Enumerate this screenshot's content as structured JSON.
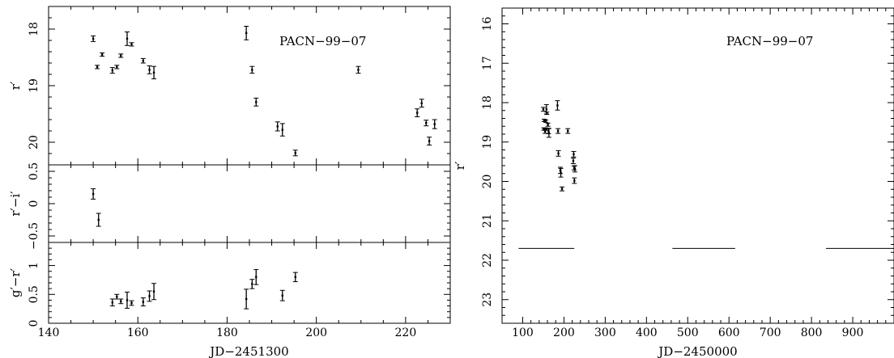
{
  "chart_data": [
    {
      "type": "scatter",
      "panel": "left-top",
      "annotation": "PACN−99−07",
      "ylabel": "r′",
      "xlim": [
        140,
        230
      ],
      "ylim": [
        20.4,
        17.6
      ],
      "y_axis_inverted": true,
      "yticks": [
        18,
        19,
        20
      ],
      "ytick_labels": [
        "18",
        "19",
        "20"
      ],
      "series": [
        {
          "points": [
            {
              "x": 150.0,
              "y": 18.17,
              "err": 0.05
            },
            {
              "x": 150.9,
              "y": 18.67,
              "err": 0.03
            },
            {
              "x": 152.0,
              "y": 18.45,
              "err": 0.03
            },
            {
              "x": 154.3,
              "y": 18.73,
              "err": 0.05
            },
            {
              "x": 155.3,
              "y": 18.67,
              "err": 0.03
            },
            {
              "x": 156.2,
              "y": 18.47,
              "err": 0.03
            },
            {
              "x": 157.6,
              "y": 18.17,
              "err": 0.12
            },
            {
              "x": 158.6,
              "y": 18.27,
              "err": 0.03
            },
            {
              "x": 161.2,
              "y": 18.56,
              "err": 0.04
            },
            {
              "x": 162.6,
              "y": 18.72,
              "err": 0.07
            },
            {
              "x": 163.6,
              "y": 18.77,
              "err": 0.11
            },
            {
              "x": 184.3,
              "y": 18.07,
              "err": 0.12
            },
            {
              "x": 185.6,
              "y": 18.72,
              "err": 0.06
            },
            {
              "x": 186.5,
              "y": 19.29,
              "err": 0.07
            },
            {
              "x": 191.3,
              "y": 19.72,
              "err": 0.08
            },
            {
              "x": 192.4,
              "y": 19.78,
              "err": 0.11
            },
            {
              "x": 195.3,
              "y": 20.19,
              "err": 0.05
            },
            {
              "x": 209.4,
              "y": 18.72,
              "err": 0.06
            },
            {
              "x": 222.6,
              "y": 19.48,
              "err": 0.07
            },
            {
              "x": 223.6,
              "y": 19.31,
              "err": 0.07
            },
            {
              "x": 224.6,
              "y": 19.66,
              "err": 0.05
            },
            {
              "x": 225.3,
              "y": 19.98,
              "err": 0.07
            },
            {
              "x": 226.5,
              "y": 19.68,
              "err": 0.08
            }
          ]
        }
      ]
    },
    {
      "type": "scatter",
      "panel": "left-middle",
      "ylabel": "r′−i′",
      "xlim": [
        140,
        230
      ],
      "ylim": [
        -0.6,
        0.6
      ],
      "yticks": [
        -0.5,
        0,
        0.5
      ],
      "ytick_labels": [
        "−0.5",
        "0",
        "0.5"
      ],
      "series": [
        {
          "points": [
            {
              "x": 150.0,
              "y": 0.15,
              "err": 0.08
            },
            {
              "x": 151.2,
              "y": -0.25,
              "err": 0.1
            }
          ]
        }
      ]
    },
    {
      "type": "scatter",
      "panel": "left-bottom",
      "ylabel": "g′−r′",
      "xlabel": "JD−2451300",
      "xlim": [
        140,
        230
      ],
      "ylim": [
        0,
        1.4
      ],
      "xticks": [
        140,
        160,
        180,
        200,
        220
      ],
      "xtick_labels": [
        "140",
        "160",
        "180",
        "200",
        "220"
      ],
      "yticks": [
        0,
        0.5,
        1
      ],
      "ytick_labels": [
        "0",
        "0.5",
        "1"
      ],
      "series": [
        {
          "points": [
            {
              "x": 154.3,
              "y": 0.36,
              "err": 0.06
            },
            {
              "x": 155.3,
              "y": 0.46,
              "err": 0.04
            },
            {
              "x": 156.2,
              "y": 0.38,
              "err": 0.04
            },
            {
              "x": 157.6,
              "y": 0.4,
              "err": 0.14
            },
            {
              "x": 158.6,
              "y": 0.35,
              "err": 0.04
            },
            {
              "x": 161.2,
              "y": 0.37,
              "err": 0.07
            },
            {
              "x": 162.6,
              "y": 0.47,
              "err": 0.09
            },
            {
              "x": 163.6,
              "y": 0.55,
              "err": 0.14
            },
            {
              "x": 184.3,
              "y": 0.42,
              "err": 0.17
            },
            {
              "x": 185.6,
              "y": 0.68,
              "err": 0.08
            },
            {
              "x": 186.5,
              "y": 0.8,
              "err": 0.13
            },
            {
              "x": 192.4,
              "y": 0.48,
              "err": 0.09
            },
            {
              "x": 195.3,
              "y": 0.8,
              "err": 0.08
            }
          ]
        }
      ]
    },
    {
      "type": "scatter",
      "panel": "right",
      "annotation": "PACN−99−07",
      "ylabel": "r′",
      "xlabel": "JD−2450000",
      "xlim": [
        50,
        1000
      ],
      "ylim": [
        23.6,
        15.6
      ],
      "y_axis_inverted": true,
      "xticks": [
        100,
        200,
        300,
        400,
        500,
        600,
        700,
        800,
        900
      ],
      "xtick_labels": [
        "100",
        "200",
        "300",
        "400",
        "500",
        "600",
        "700",
        "800",
        "900"
      ],
      "yticks": [
        16,
        17,
        18,
        19,
        20,
        21,
        22,
        23
      ],
      "ytick_labels": [
        "16",
        "17",
        "18",
        "19",
        "20",
        "21",
        "22",
        "23"
      ],
      "series": [
        {
          "points": [
            {
              "x": 150.0,
              "y": 18.17,
              "err": 0.05
            },
            {
              "x": 150.9,
              "y": 18.67,
              "err": 0.03
            },
            {
              "x": 152.0,
              "y": 18.45,
              "err": 0.03
            },
            {
              "x": 154.3,
              "y": 18.73,
              "err": 0.05
            },
            {
              "x": 155.3,
              "y": 18.67,
              "err": 0.03
            },
            {
              "x": 156.2,
              "y": 18.47,
              "err": 0.03
            },
            {
              "x": 157.6,
              "y": 18.17,
              "err": 0.12
            },
            {
              "x": 158.6,
              "y": 18.27,
              "err": 0.03
            },
            {
              "x": 161.2,
              "y": 18.56,
              "err": 0.04
            },
            {
              "x": 162.6,
              "y": 18.72,
              "err": 0.07
            },
            {
              "x": 163.6,
              "y": 18.77,
              "err": 0.11
            },
            {
              "x": 184.3,
              "y": 18.07,
              "err": 0.12
            },
            {
              "x": 185.6,
              "y": 18.72,
              "err": 0.06
            },
            {
              "x": 186.5,
              "y": 19.29,
              "err": 0.07
            },
            {
              "x": 191.3,
              "y": 19.72,
              "err": 0.08
            },
            {
              "x": 192.4,
              "y": 19.78,
              "err": 0.11
            },
            {
              "x": 195.3,
              "y": 20.19,
              "err": 0.05
            },
            {
              "x": 209.4,
              "y": 18.72,
              "err": 0.06
            },
            {
              "x": 222.6,
              "y": 19.48,
              "err": 0.07
            },
            {
              "x": 223.6,
              "y": 19.31,
              "err": 0.07
            },
            {
              "x": 224.6,
              "y": 19.66,
              "err": 0.05
            },
            {
              "x": 225.3,
              "y": 19.98,
              "err": 0.07
            },
            {
              "x": 226.5,
              "y": 19.68,
              "err": 0.08
            }
          ]
        }
      ],
      "limit_lines": [
        {
          "x0": 90,
          "x1": 225,
          "y": 21.7
        },
        {
          "x0": 463,
          "x1": 615,
          "y": 21.7
        },
        {
          "x0": 835,
          "x1": 1000,
          "y": 21.7
        }
      ]
    }
  ]
}
